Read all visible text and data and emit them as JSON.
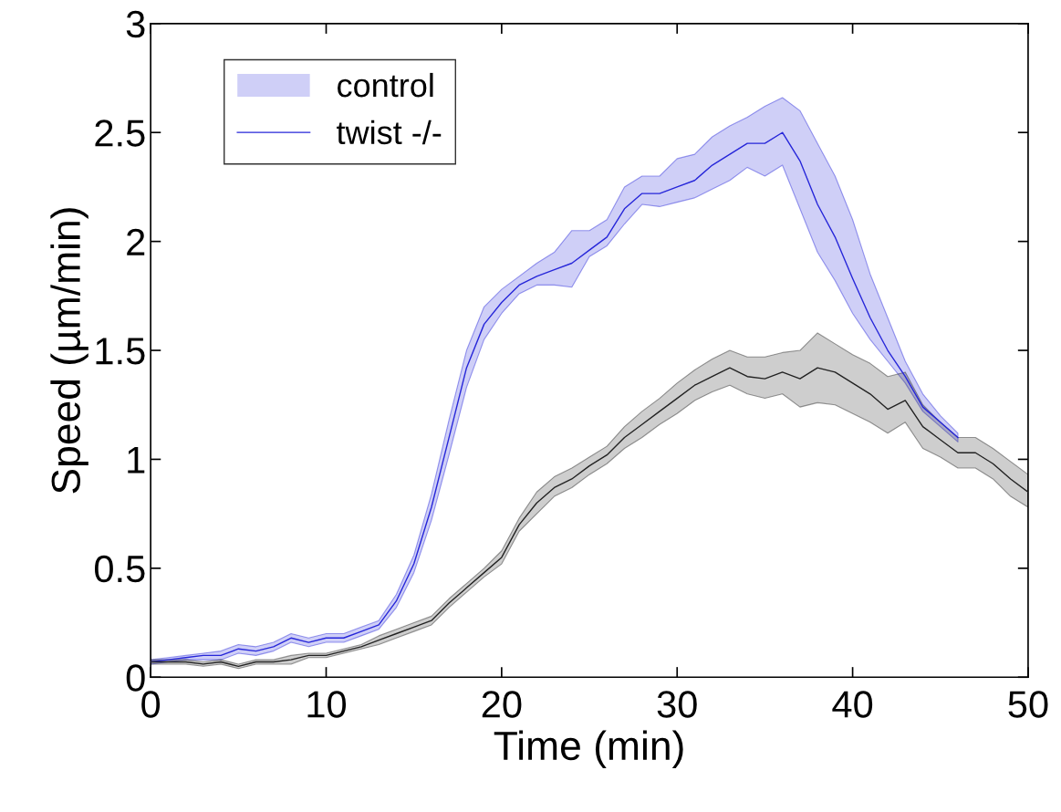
{
  "chart_data": {
    "type": "line",
    "xlabel": "Time (min)",
    "ylabel": "Speed (µm/min)",
    "xlim": [
      0,
      50
    ],
    "xticks": [
      0,
      10,
      20,
      30,
      40,
      50
    ],
    "ylim": [
      0,
      3
    ],
    "yticks": [
      0,
      0.5,
      1,
      1.5,
      2,
      2.5,
      3
    ],
    "grid": false,
    "legend": "top left",
    "marker": "none",
    "line_style": "solid",
    "annotations": [
      "control"
    ],
    "series": [
      {
        "name": "twist -/-",
        "color": "#2626d9",
        "x": [
          0,
          1,
          2,
          3,
          4,
          5,
          6,
          7,
          8,
          9,
          10,
          11,
          12,
          13,
          14,
          15,
          16,
          17,
          18,
          19,
          20,
          21,
          22,
          23,
          24,
          25,
          26,
          27,
          28,
          29,
          30,
          31,
          32,
          33,
          34,
          35,
          36,
          37,
          38,
          39,
          40,
          41,
          42,
          43,
          44,
          45,
          46
        ],
        "values": [
          0.07,
          0.08,
          0.09,
          0.1,
          0.1,
          0.13,
          0.12,
          0.14,
          0.18,
          0.16,
          0.18,
          0.18,
          0.21,
          0.24,
          0.35,
          0.52,
          0.78,
          1.1,
          1.42,
          1.62,
          1.72,
          1.8,
          1.84,
          1.87,
          1.9,
          1.96,
          2.02,
          2.15,
          2.22,
          2.22,
          2.25,
          2.28,
          2.35,
          2.4,
          2.45,
          2.45,
          2.5,
          2.37,
          2.17,
          2.02,
          1.83,
          1.65,
          1.5,
          1.38,
          1.24,
          1.17,
          1.1
        ],
        "lower": [
          0.06,
          0.07,
          0.08,
          0.08,
          0.08,
          0.11,
          0.1,
          0.12,
          0.16,
          0.14,
          0.16,
          0.16,
          0.19,
          0.22,
          0.32,
          0.48,
          0.72,
          1.02,
          1.33,
          1.55,
          1.67,
          1.76,
          1.8,
          1.8,
          1.79,
          1.93,
          1.98,
          2.08,
          2.17,
          2.16,
          2.18,
          2.2,
          2.24,
          2.28,
          2.34,
          2.3,
          2.35,
          2.15,
          1.95,
          1.82,
          1.67,
          1.55,
          1.45,
          1.35,
          1.22,
          1.15,
          1.08
        ],
        "upper": [
          0.08,
          0.09,
          0.1,
          0.11,
          0.12,
          0.15,
          0.14,
          0.16,
          0.2,
          0.18,
          0.2,
          0.2,
          0.23,
          0.26,
          0.38,
          0.56,
          0.84,
          1.18,
          1.5,
          1.7,
          1.78,
          1.84,
          1.9,
          1.95,
          2.05,
          2.05,
          2.1,
          2.25,
          2.3,
          2.3,
          2.38,
          2.4,
          2.48,
          2.53,
          2.57,
          2.62,
          2.66,
          2.6,
          2.45,
          2.3,
          2.1,
          1.85,
          1.65,
          1.45,
          1.3,
          1.2,
          1.12
        ]
      },
      {
        "color": "#222222",
        "x": [
          0,
          1,
          2,
          3,
          4,
          5,
          6,
          7,
          8,
          9,
          10,
          11,
          12,
          13,
          14,
          15,
          16,
          17,
          18,
          19,
          20,
          21,
          22,
          23,
          24,
          25,
          26,
          27,
          28,
          29,
          30,
          31,
          32,
          33,
          34,
          35,
          36,
          37,
          38,
          39,
          40,
          41,
          42,
          43,
          44,
          45,
          46,
          47,
          48,
          49,
          50
        ],
        "values": [
          0.07,
          0.07,
          0.07,
          0.06,
          0.07,
          0.05,
          0.07,
          0.07,
          0.08,
          0.1,
          0.1,
          0.12,
          0.14,
          0.17,
          0.2,
          0.23,
          0.26,
          0.34,
          0.41,
          0.48,
          0.55,
          0.7,
          0.8,
          0.87,
          0.91,
          0.97,
          1.02,
          1.1,
          1.16,
          1.22,
          1.28,
          1.34,
          1.38,
          1.42,
          1.38,
          1.37,
          1.4,
          1.37,
          1.42,
          1.4,
          1.35,
          1.3,
          1.23,
          1.27,
          1.15,
          1.09,
          1.03,
          1.03,
          0.98,
          0.91,
          0.85
        ],
        "lower": [
          0.06,
          0.06,
          0.06,
          0.05,
          0.06,
          0.04,
          0.06,
          0.06,
          0.06,
          0.09,
          0.09,
          0.11,
          0.13,
          0.15,
          0.18,
          0.21,
          0.24,
          0.32,
          0.39,
          0.46,
          0.52,
          0.67,
          0.75,
          0.83,
          0.87,
          0.93,
          0.98,
          1.05,
          1.1,
          1.16,
          1.21,
          1.27,
          1.31,
          1.34,
          1.3,
          1.28,
          1.3,
          1.24,
          1.26,
          1.25,
          1.21,
          1.17,
          1.12,
          1.17,
          1.05,
          1.01,
          0.96,
          0.96,
          0.91,
          0.83,
          0.78
        ],
        "upper": [
          0.08,
          0.08,
          0.08,
          0.07,
          0.08,
          0.06,
          0.08,
          0.08,
          0.1,
          0.11,
          0.11,
          0.13,
          0.15,
          0.19,
          0.22,
          0.25,
          0.28,
          0.36,
          0.43,
          0.5,
          0.58,
          0.73,
          0.85,
          0.92,
          0.96,
          1.01,
          1.06,
          1.15,
          1.22,
          1.28,
          1.35,
          1.41,
          1.46,
          1.5,
          1.47,
          1.47,
          1.49,
          1.5,
          1.58,
          1.53,
          1.48,
          1.44,
          1.38,
          1.4,
          1.25,
          1.17,
          1.1,
          1.1,
          1.05,
          0.99,
          0.93
        ]
      }
    ]
  }
}
